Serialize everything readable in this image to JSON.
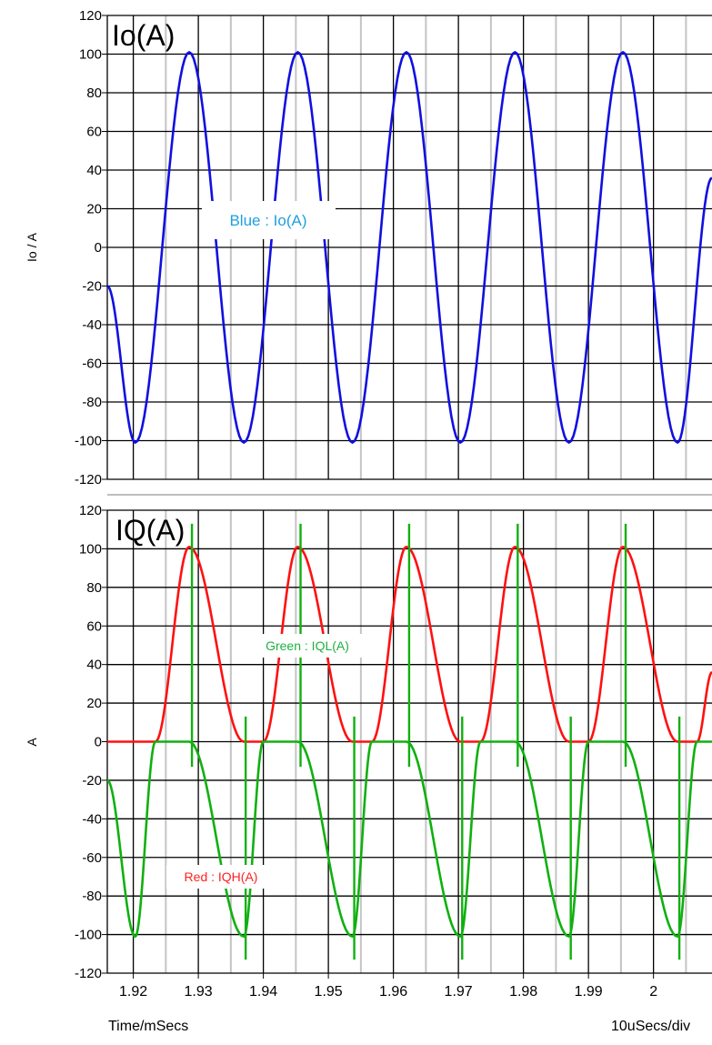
{
  "xlabel": "Time/mSecs",
  "xscale_label": "10uSecs/div",
  "chart_data": [
    {
      "type": "line",
      "title": "Io(A)",
      "ylabel": "Io / A",
      "xlim": [
        1.916,
        2.009
      ],
      "ylim": [
        -120,
        120
      ],
      "x_ticks": [
        1.92,
        1.93,
        1.94,
        1.95,
        1.96,
        1.97,
        1.98,
        1.99,
        2
      ],
      "x_tick_labels": [
        "1.92",
        "1.93",
        "1.94",
        "1.95",
        "1.96",
        "1.97",
        "1.98",
        "1.99",
        "2"
      ],
      "y_ticks": [
        120,
        100,
        80,
        60,
        40,
        20,
        0,
        -20,
        -40,
        -60,
        -80,
        -100,
        -120
      ],
      "y_tick_labels": [
        "120",
        "100",
        "80",
        "60",
        "40",
        "20",
        "0",
        "-20",
        "-40",
        "-60",
        "-80",
        "-100",
        "-120"
      ],
      "grid": true,
      "annotations": [
        {
          "text": "Blue : Io(A)",
          "color": "#1ea0e0"
        }
      ],
      "series": [
        {
          "name": "Io(A)",
          "color": "#1010e0",
          "x": [
            1.916,
            1.9203,
            1.9286,
            1.937,
            1.9453,
            1.9537,
            1.962,
            1.9703,
            1.9787,
            1.987,
            1.9953,
            2.0037,
            2.009
          ],
          "y": [
            -20,
            -101,
            101,
            -101,
            101,
            -101,
            101,
            -101,
            101,
            -101,
            101,
            -101,
            36
          ]
        }
      ]
    },
    {
      "type": "line",
      "title": "IQ(A)",
      "ylabel": "A",
      "xlim": [
        1.916,
        2.009
      ],
      "ylim": [
        -120,
        120
      ],
      "x_ticks": [
        1.92,
        1.93,
        1.94,
        1.95,
        1.96,
        1.97,
        1.98,
        1.99,
        2
      ],
      "x_tick_labels": [
        "1.92",
        "1.93",
        "1.94",
        "1.95",
        "1.96",
        "1.97",
        "1.98",
        "1.99",
        "2"
      ],
      "y_ticks": [
        120,
        100,
        80,
        60,
        40,
        20,
        0,
        -20,
        -40,
        -60,
        -80,
        -100,
        -120
      ],
      "y_tick_labels": [
        "120",
        "100",
        "80",
        "60",
        "40",
        "20",
        "0",
        "-20",
        "-40",
        "-60",
        "-80",
        "-100",
        "-120"
      ],
      "grid": true,
      "annotations": [
        {
          "text": "Green : IQL(A)",
          "color": "#20b040"
        },
        {
          "text": "Red : IQH(A)",
          "color": "#ff2020"
        }
      ],
      "series": [
        {
          "name": "IQH(A)",
          "color": "#ff1010",
          "x": [
            1.916,
            1.9203,
            1.9234,
            1.9286,
            1.937,
            1.94,
            1.9453,
            1.9537,
            1.9567,
            1.962,
            1.9703,
            1.9734,
            1.9787,
            1.987,
            1.99,
            1.9953,
            2.0037,
            2.0067,
            2.009
          ],
          "y": [
            0,
            0,
            0,
            101,
            0,
            0,
            101,
            0,
            0,
            101,
            0,
            0,
            101,
            0,
            0,
            101,
            0,
            0,
            36
          ]
        },
        {
          "name": "IQL(A)",
          "color": "#10b010",
          "x": [
            1.916,
            1.9203,
            1.9234,
            1.9286,
            1.937,
            1.94,
            1.9453,
            1.9537,
            1.9567,
            1.962,
            1.9703,
            1.9734,
            1.9787,
            1.987,
            1.99,
            1.9953,
            2.0037,
            2.0067,
            2.009
          ],
          "y": [
            -20,
            -101,
            0,
            0,
            -101,
            0,
            0,
            -101,
            0,
            0,
            -101,
            0,
            0,
            -101,
            0,
            0,
            -101,
            0,
            0
          ]
        }
      ]
    }
  ]
}
